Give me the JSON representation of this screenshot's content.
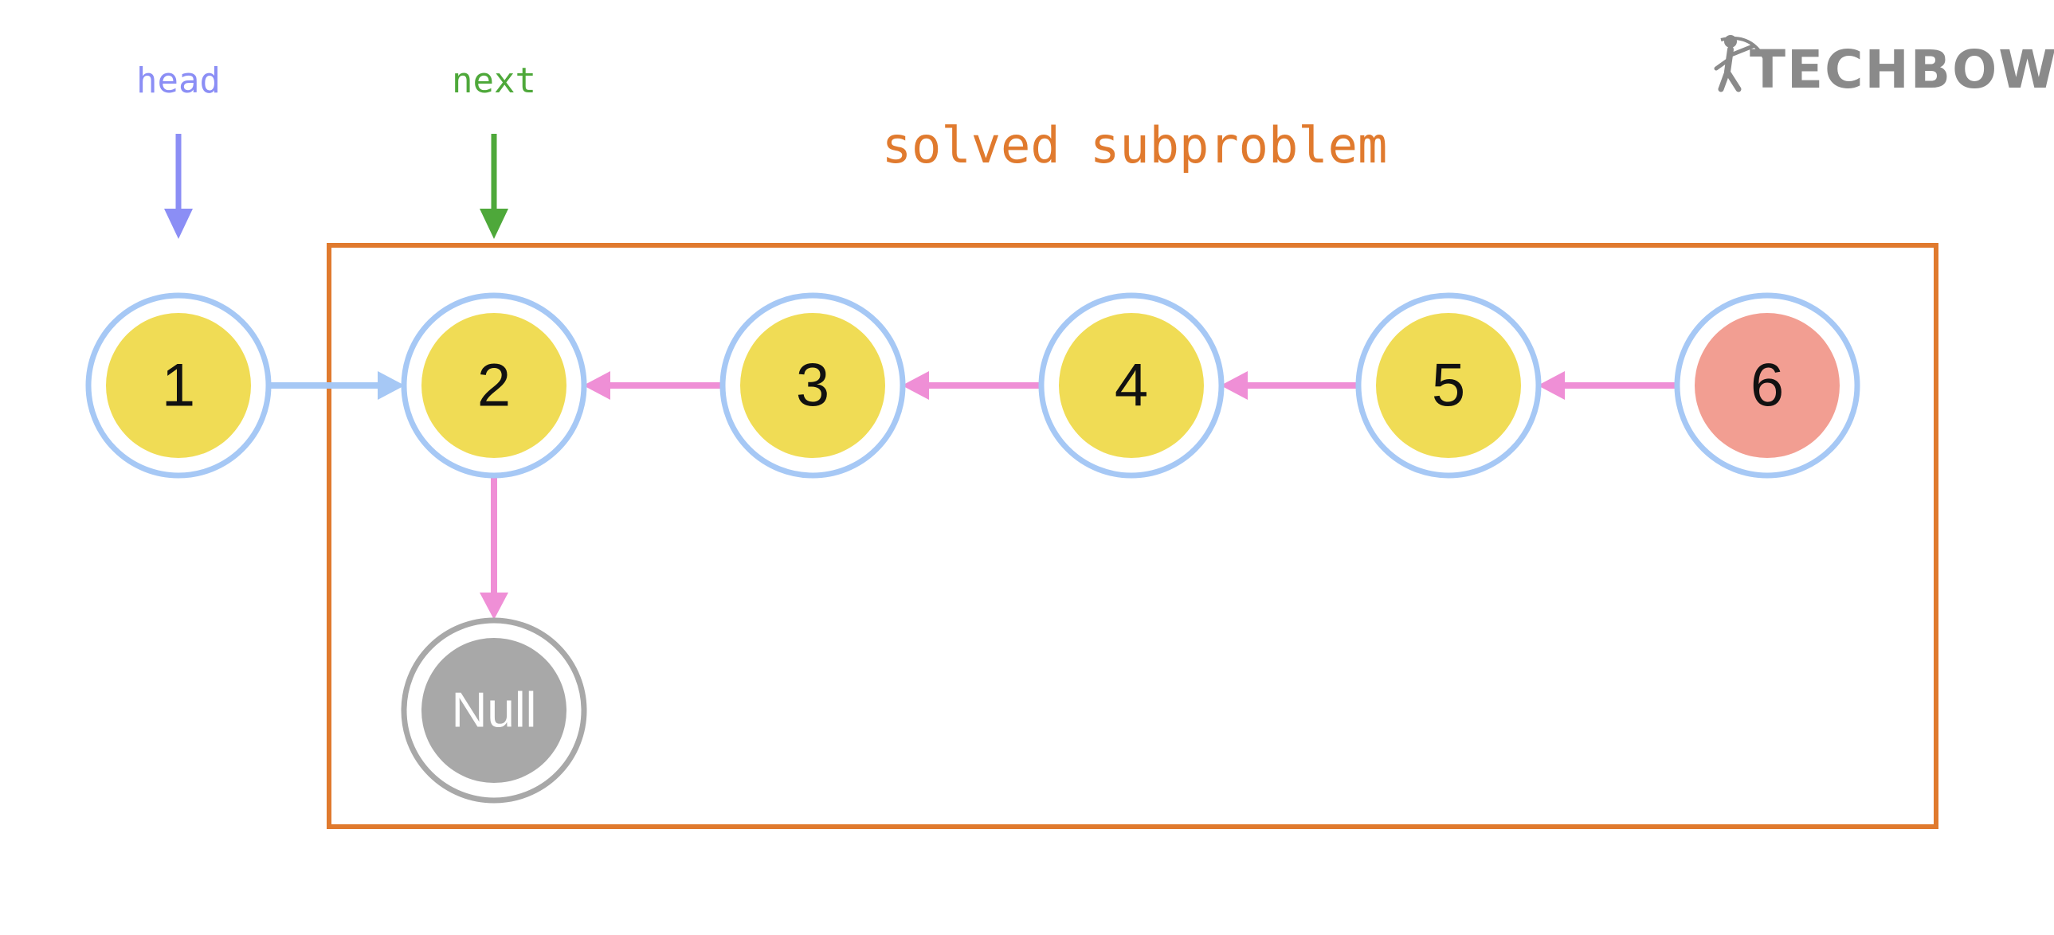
{
  "labels": {
    "head": "head",
    "next": "next",
    "region": "solved subproblem"
  },
  "nodes": [
    {
      "id": "n1",
      "label": "1",
      "kind": "normal"
    },
    {
      "id": "n2",
      "label": "2",
      "kind": "normal"
    },
    {
      "id": "n3",
      "label": "3",
      "kind": "normal"
    },
    {
      "id": "n4",
      "label": "4",
      "kind": "normal"
    },
    {
      "id": "n5",
      "label": "5",
      "kind": "normal"
    },
    {
      "id": "n6",
      "label": "6",
      "kind": "highlight"
    },
    {
      "id": "null",
      "label": "Null",
      "kind": "null"
    }
  ],
  "edges": [
    {
      "from": "n1",
      "to": "n2",
      "kind": "original"
    },
    {
      "from": "n3",
      "to": "n2",
      "kind": "reversed"
    },
    {
      "from": "n4",
      "to": "n3",
      "kind": "reversed"
    },
    {
      "from": "n5",
      "to": "n4",
      "kind": "reversed"
    },
    {
      "from": "n6",
      "to": "n5",
      "kind": "reversed"
    },
    {
      "from": "n2",
      "to": "null",
      "kind": "reversed"
    }
  ],
  "logo": {
    "text": "TECHBOW",
    "icon": "archer-icon"
  },
  "colors": {
    "head": "#8b8ef5",
    "next": "#4ea83a",
    "region": "#e07a2e",
    "node_fill": "#f0dc55",
    "node_highlight": "#f29e92",
    "node_ring": "#a6c8f5",
    "null_fill": "#a8a8a8",
    "null_ring": "#a8a8a8",
    "edge_original": "#a6c8f5",
    "edge_reversed": "#ef8fd6",
    "logo": "#8a8a8a"
  }
}
